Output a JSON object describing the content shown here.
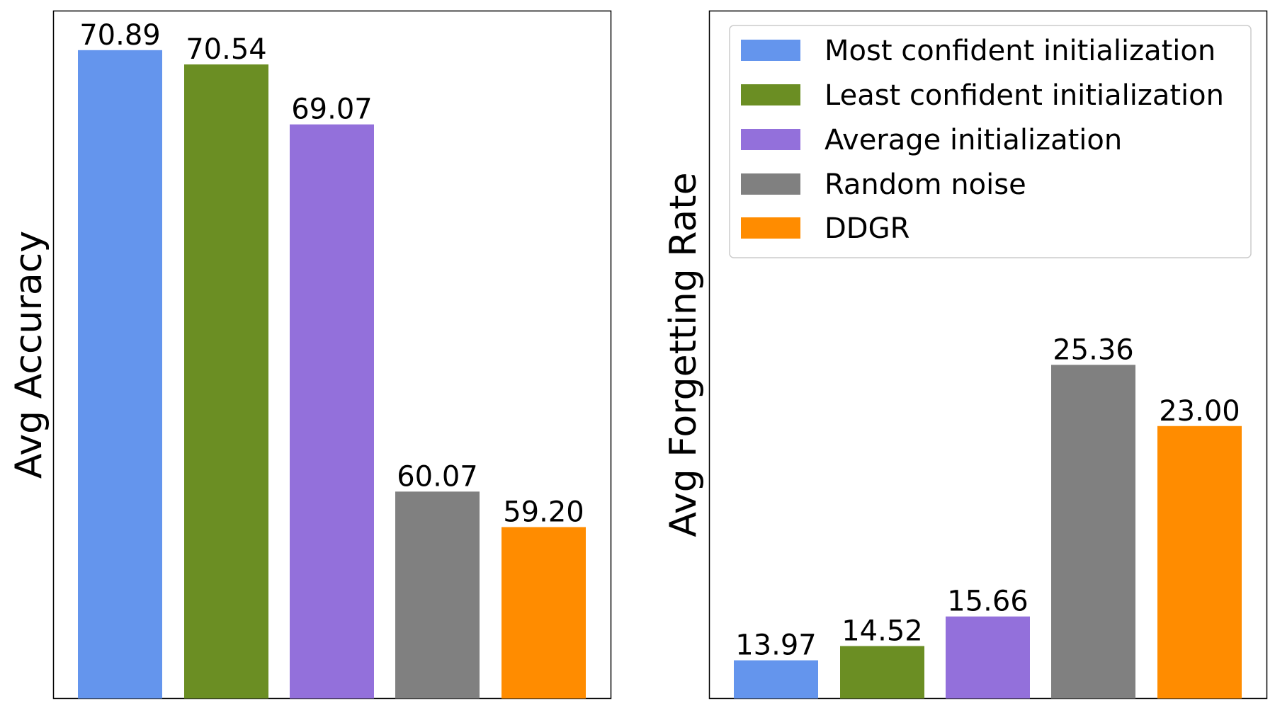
{
  "chart_data": [
    {
      "type": "bar",
      "ylabel": "Avg Accuracy",
      "xlabel": "",
      "categories": [
        "Most confident initialization",
        "Least confident initialization",
        "Average initialization",
        "Random noise",
        "DDGR"
      ],
      "values": [
        70.89,
        70.54,
        69.07,
        60.07,
        59.2
      ],
      "value_labels": [
        "70.89",
        "70.54",
        "69.07",
        "60.07",
        "59.20"
      ],
      "ylim": [
        55.0,
        71.85
      ],
      "show_ticks": false
    },
    {
      "type": "bar",
      "ylabel": "Avg Forgetting Rate",
      "xlabel": "",
      "categories": [
        "Most confident initialization",
        "Least confident initialization",
        "Average initialization",
        "Random noise",
        "DDGR"
      ],
      "values": [
        13.97,
        14.52,
        15.66,
        25.36,
        23.0
      ],
      "value_labels": [
        "13.97",
        "14.52",
        "15.66",
        "25.36",
        "23.00"
      ],
      "ylim": [
        12.5,
        39.0
      ],
      "show_ticks": false,
      "legend_position": "top-right"
    }
  ],
  "legend": [
    {
      "label": "Most confident initialization",
      "color": "#6495ED"
    },
    {
      "label": "Least confident initialization",
      "color": "#6B8E23"
    },
    {
      "label": "Average initialization",
      "color": "#9370DB"
    },
    {
      "label": "Random noise",
      "color": "#808080"
    },
    {
      "label": "DDGR",
      "color": "#FF8C00"
    }
  ]
}
